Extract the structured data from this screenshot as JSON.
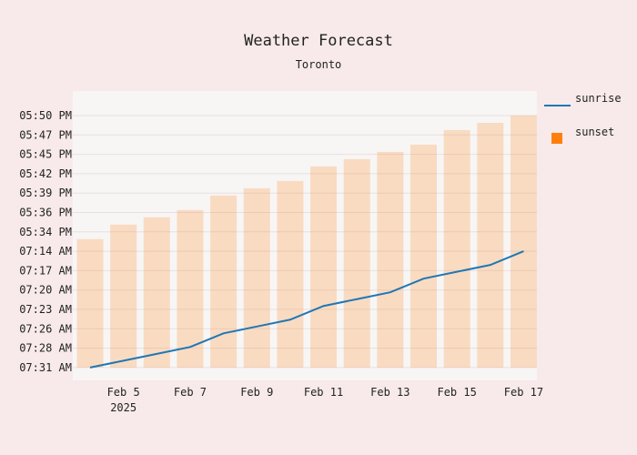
{
  "chart_data": {
    "type": "bar",
    "title": "Weather Forecast",
    "subtitle": "Toronto",
    "x_labels": [
      "Feb 5",
      "Feb 7",
      "Feb 9",
      "Feb 11",
      "Feb 13",
      "Feb 15",
      "Feb 17"
    ],
    "x_year_label": "2025",
    "y_labels": [
      "05:50 PM",
      "05:47 PM",
      "05:45 PM",
      "05:42 PM",
      "05:39 PM",
      "05:36 PM",
      "05:34 PM",
      "07:14 AM",
      "07:17 AM",
      "07:20 AM",
      "07:23 AM",
      "07:26 AM",
      "07:28 AM",
      "07:31 AM"
    ],
    "dates": [
      "2025-02-04",
      "2025-02-05",
      "2025-02-06",
      "2025-02-07",
      "2025-02-08",
      "2025-02-09",
      "2025-02-10",
      "2025-02-11",
      "2025-02-12",
      "2025-02-13",
      "2025-02-14",
      "2025-02-15",
      "2025-02-16",
      "2025-02-17"
    ],
    "series": [
      {
        "name": "sunset",
        "type": "bar",
        "color": "#ff7f0e",
        "values": [
          "05:33 PM",
          "05:35 PM",
          "05:36 PM",
          "05:37 PM",
          "05:39 PM",
          "05:40 PM",
          "05:41 PM",
          "05:43 PM",
          "05:44 PM",
          "05:45 PM",
          "05:46 PM",
          "05:48 PM",
          "05:49 PM",
          "05:50 PM"
        ]
      },
      {
        "name": "sunrise",
        "type": "line",
        "color": "#1f77b4",
        "values": [
          "07:31 AM",
          "07:30 AM",
          "07:29 AM",
          "07:28 AM",
          "07:26 AM",
          "07:25 AM",
          "07:24 AM",
          "07:22 AM",
          "07:21 AM",
          "07:20 AM",
          "07:18 AM",
          "07:17 AM",
          "07:16 AM",
          "07:14 AM"
        ]
      }
    ],
    "legend": [
      "sunrise",
      "sunset"
    ],
    "legend_position": "right",
    "grid": true
  }
}
